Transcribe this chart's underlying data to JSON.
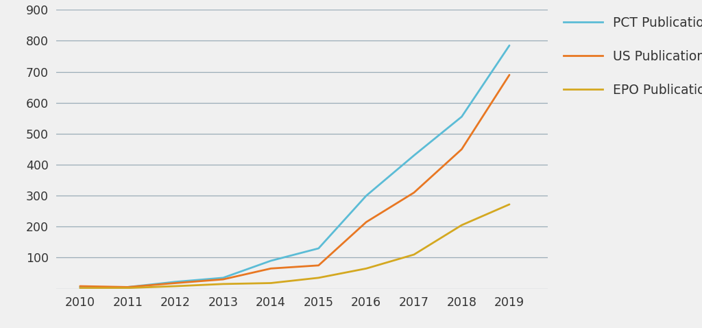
{
  "years": [
    2010,
    2011,
    2012,
    2013,
    2014,
    2015,
    2016,
    2017,
    2018,
    2019
  ],
  "pct": [
    5,
    5,
    22,
    35,
    90,
    130,
    300,
    430,
    555,
    785
  ],
  "us": [
    8,
    5,
    18,
    30,
    65,
    75,
    215,
    310,
    450,
    690
  ],
  "epo": [
    2,
    2,
    8,
    15,
    18,
    35,
    65,
    110,
    205,
    272
  ],
  "pct_color": "#5bbcd6",
  "us_color": "#e87722",
  "epo_color": "#d4a820",
  "background_color": "#f0f0f0",
  "grid_color": "#9aacb8",
  "text_color": "#333333",
  "ylim": [
    0,
    900
  ],
  "yticks": [
    100,
    200,
    300,
    400,
    500,
    600,
    700,
    800,
    900
  ],
  "legend_labels": [
    "PCT Publications",
    "US Publications",
    "EPO Publications"
  ],
  "line_width": 2.0,
  "font_size": 12.5,
  "legend_font_size": 13.5
}
